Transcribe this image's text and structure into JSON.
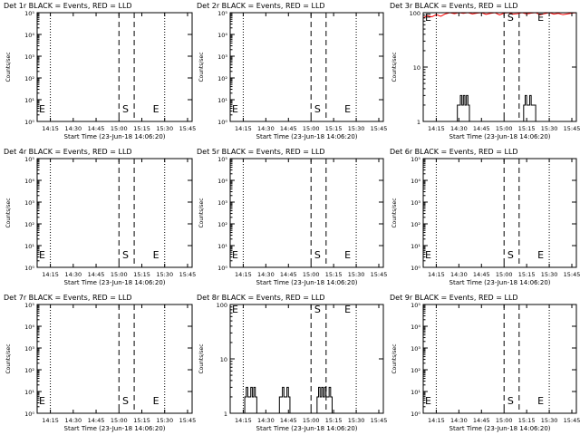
{
  "chart_data": [
    {
      "type": "line",
      "title": "Det 1r BLACK = Events, RED = LLD",
      "xlabel": "Start Time (23-Jun-18 14:06:20)",
      "ylabel": "Counts/sec",
      "scale": "log",
      "ylim": [
        1,
        100000
      ],
      "ytick_labels": [
        {
          "value": 1,
          "label": "10⁰"
        },
        {
          "value": 10,
          "label": "10¹"
        },
        {
          "value": 100,
          "label": "10²"
        },
        {
          "value": 1000,
          "label": "10³"
        },
        {
          "value": 10000,
          "label": "10⁴"
        },
        {
          "value": 100000,
          "label": "10⁵"
        }
      ],
      "xlim": [
        "14:06:20",
        "15:48:00"
      ],
      "xtick_labels": [
        "14:15",
        "14:30",
        "14:45",
        "15:00",
        "15:15",
        "15:30",
        "15:45"
      ],
      "dotted_lines": [
        "14:15",
        "15:30"
      ],
      "dashed_lines": [
        "15:00",
        "15:10"
      ],
      "markers": [
        {
          "label": "E",
          "x": "14:06:20"
        },
        {
          "label": "S",
          "x": "15:01"
        },
        {
          "label": "E",
          "x": "15:21"
        }
      ],
      "series": []
    },
    {
      "type": "line",
      "title": "Det 2r BLACK = Events, RED = LLD",
      "xlabel": "Start Time (23-Jun-18 14:06:20)",
      "ylabel": "Counts/sec",
      "scale": "log",
      "ylim": [
        1,
        100000
      ],
      "ytick_labels": [
        {
          "value": 1,
          "label": "10⁰"
        },
        {
          "value": 10,
          "label": "10¹"
        },
        {
          "value": 100,
          "label": "10²"
        },
        {
          "value": 1000,
          "label": "10³"
        },
        {
          "value": 10000,
          "label": "10⁴"
        },
        {
          "value": 100000,
          "label": "10⁵"
        }
      ],
      "xlim": [
        "14:06:20",
        "15:48:00"
      ],
      "xtick_labels": [
        "14:15",
        "14:30",
        "14:45",
        "15:00",
        "15:15",
        "15:30",
        "15:45"
      ],
      "dotted_lines": [
        "14:15",
        "15:30"
      ],
      "dashed_lines": [
        "15:00",
        "15:10"
      ],
      "markers": [
        {
          "label": "E",
          "x": "14:06:20"
        },
        {
          "label": "S",
          "x": "15:01"
        },
        {
          "label": "E",
          "x": "15:21"
        }
      ],
      "series": []
    },
    {
      "type": "line",
      "title": "Det 3r BLACK = Events, RED = LLD",
      "xlabel": "Start Time (23-Jun-18 14:06:20)",
      "ylabel": "Counts/sec",
      "scale": "log",
      "ylim": [
        1,
        100
      ],
      "ytick_labels": [
        {
          "value": 1,
          "label": "1"
        },
        {
          "value": 10,
          "label": "10"
        },
        {
          "value": 100,
          "label": "100"
        }
      ],
      "xlim": [
        "14:06:20",
        "15:48:00"
      ],
      "xtick_labels": [
        "14:15",
        "14:30",
        "14:45",
        "15:00",
        "15:15",
        "15:30",
        "15:45"
      ],
      "dotted_lines": [
        "14:15",
        "15:30"
      ],
      "dashed_lines": [
        "15:00",
        "15:10"
      ],
      "markers": [
        {
          "label": "E",
          "x": "14:06:20"
        },
        {
          "label": "S",
          "x": "15:01"
        },
        {
          "label": "E",
          "x": "15:21"
        }
      ],
      "series": [
        {
          "role": "events",
          "color": "#000000",
          "step": true,
          "x": [
            "14:28",
            "14:29",
            "14:30",
            "14:31",
            "14:32",
            "14:33",
            "14:34",
            "14:35",
            "14:36",
            "14:37",
            "15:12",
            "15:13",
            "15:14",
            "15:15",
            "15:16",
            "15:17",
            "15:18",
            "15:19",
            "15:20",
            "15:21"
          ],
          "values": [
            1,
            2,
            2,
            3,
            2,
            3,
            2,
            3,
            2,
            1,
            1,
            2,
            3,
            2,
            2,
            3,
            2,
            2,
            2,
            1
          ]
        },
        {
          "role": "lld",
          "color": "#ff0000",
          "x": [
            "14:06:20",
            "14:09",
            "14:12",
            "14:15",
            "14:18",
            "14:21",
            "14:24",
            "14:27",
            "14:30",
            "14:33",
            "14:36",
            "14:39",
            "14:42",
            "14:45",
            "14:48",
            "14:51",
            "14:54",
            "14:57",
            "15:00",
            "15:03",
            "15:06",
            "15:09",
            "15:12",
            "15:15",
            "15:18",
            "15:21",
            "15:24",
            "15:27",
            "15:30",
            "15:33",
            "15:36",
            "15:39",
            "15:42",
            "15:45",
            "15:48"
          ],
          "values": [
            80,
            88,
            84,
            92,
            86,
            95,
            100,
            96,
            100,
            97,
            100,
            95,
            98,
            100,
            93,
            97,
            100,
            91,
            98,
            100,
            94,
            96,
            100,
            95,
            98,
            100,
            92,
            96,
            100,
            94,
            97,
            92,
            95,
            98,
            100
          ]
        }
      ]
    },
    {
      "type": "line",
      "title": "Det 4r BLACK = Events, RED = LLD",
      "xlabel": "Start Time (23-Jun-18 14:06:20)",
      "ylabel": "Counts/sec",
      "scale": "log",
      "ylim": [
        1,
        100000
      ],
      "ytick_labels": [
        {
          "value": 1,
          "label": "10⁰"
        },
        {
          "value": 10,
          "label": "10¹"
        },
        {
          "value": 100,
          "label": "10²"
        },
        {
          "value": 1000,
          "label": "10³"
        },
        {
          "value": 10000,
          "label": "10⁴"
        },
        {
          "value": 100000,
          "label": "10⁵"
        }
      ],
      "xlim": [
        "14:06:20",
        "15:48:00"
      ],
      "xtick_labels": [
        "14:15",
        "14:30",
        "14:45",
        "15:00",
        "15:15",
        "15:30",
        "15:45"
      ],
      "dotted_lines": [
        "14:15",
        "15:30"
      ],
      "dashed_lines": [
        "15:00",
        "15:10"
      ],
      "markers": [
        {
          "label": "E",
          "x": "14:06:20"
        },
        {
          "label": "S",
          "x": "15:01"
        },
        {
          "label": "E",
          "x": "15:21"
        }
      ],
      "series": []
    },
    {
      "type": "line",
      "title": "Det 5r BLACK = Events, RED = LLD",
      "xlabel": "Start Time (23-Jun-18 14:06:20)",
      "ylabel": "Counts/sec",
      "scale": "log",
      "ylim": [
        1,
        100000
      ],
      "ytick_labels": [
        {
          "value": 1,
          "label": "10⁰"
        },
        {
          "value": 10,
          "label": "10¹"
        },
        {
          "value": 100,
          "label": "10²"
        },
        {
          "value": 1000,
          "label": "10³"
        },
        {
          "value": 10000,
          "label": "10⁴"
        },
        {
          "value": 100000,
          "label": "10⁵"
        }
      ],
      "xlim": [
        "14:06:20",
        "15:48:00"
      ],
      "xtick_labels": [
        "14:15",
        "14:30",
        "14:45",
        "15:00",
        "15:15",
        "15:30",
        "15:45"
      ],
      "dotted_lines": [
        "14:15",
        "15:30"
      ],
      "dashed_lines": [
        "15:00",
        "15:10"
      ],
      "markers": [
        {
          "label": "E",
          "x": "14:06:20"
        },
        {
          "label": "S",
          "x": "15:01"
        },
        {
          "label": "E",
          "x": "15:21"
        }
      ],
      "series": []
    },
    {
      "type": "line",
      "title": "Det 6r BLACK = Events, RED = LLD",
      "xlabel": "Start Time (23-Jun-18 14:06:20)",
      "ylabel": "Counts/sec",
      "scale": "log",
      "ylim": [
        1,
        100000
      ],
      "ytick_labels": [
        {
          "value": 1,
          "label": "10⁰"
        },
        {
          "value": 10,
          "label": "10¹"
        },
        {
          "value": 100,
          "label": "10²"
        },
        {
          "value": 1000,
          "label": "10³"
        },
        {
          "value": 10000,
          "label": "10⁴"
        },
        {
          "value": 100000,
          "label": "10⁵"
        }
      ],
      "xlim": [
        "14:06:20",
        "15:48:00"
      ],
      "xtick_labels": [
        "14:15",
        "14:30",
        "14:45",
        "15:00",
        "15:15",
        "15:30",
        "15:45"
      ],
      "dotted_lines": [
        "14:15",
        "15:30"
      ],
      "dashed_lines": [
        "15:00",
        "15:10"
      ],
      "markers": [
        {
          "label": "E",
          "x": "14:06:20"
        },
        {
          "label": "S",
          "x": "15:01"
        },
        {
          "label": "E",
          "x": "15:21"
        }
      ],
      "series": []
    },
    {
      "type": "line",
      "title": "Det 7r BLACK = Events, RED = LLD",
      "xlabel": "Start Time (23-Jun-18 14:06:20)",
      "ylabel": "Counts/sec",
      "scale": "log",
      "ylim": [
        1,
        100000
      ],
      "ytick_labels": [
        {
          "value": 1,
          "label": "10⁰"
        },
        {
          "value": 10,
          "label": "10¹"
        },
        {
          "value": 100,
          "label": "10²"
        },
        {
          "value": 1000,
          "label": "10³"
        },
        {
          "value": 10000,
          "label": "10⁴"
        },
        {
          "value": 100000,
          "label": "10⁵"
        }
      ],
      "xlim": [
        "14:06:20",
        "15:48:00"
      ],
      "xtick_labels": [
        "14:15",
        "14:30",
        "14:45",
        "15:00",
        "15:15",
        "15:30",
        "15:45"
      ],
      "dotted_lines": [
        "14:15",
        "15:30"
      ],
      "dashed_lines": [
        "15:00",
        "15:10"
      ],
      "markers": [
        {
          "label": "E",
          "x": "14:06:20"
        },
        {
          "label": "S",
          "x": "15:01"
        },
        {
          "label": "E",
          "x": "15:21"
        }
      ],
      "series": []
    },
    {
      "type": "line",
      "title": "Det 8r BLACK = Events, RED = LLD",
      "xlabel": "Start Time (23-Jun-18 14:06:20)",
      "ylabel": "Counts/sec",
      "scale": "log",
      "ylim": [
        1,
        100
      ],
      "ytick_labels": [
        {
          "value": 1,
          "label": "1"
        },
        {
          "value": 10,
          "label": "10"
        },
        {
          "value": 100,
          "label": "100"
        }
      ],
      "xlim": [
        "14:06:20",
        "15:48:00"
      ],
      "xtick_labels": [
        "14:15",
        "14:30",
        "14:45",
        "15:00",
        "15:15",
        "15:30",
        "15:45"
      ],
      "dotted_lines": [
        "14:15",
        "15:30"
      ],
      "dashed_lines": [
        "15:00",
        "15:10"
      ],
      "markers": [
        {
          "label": "E",
          "x": "14:06:20"
        },
        {
          "label": "S",
          "x": "15:01"
        },
        {
          "label": "E",
          "x": "15:21"
        }
      ],
      "series": [
        {
          "role": "events",
          "color": "#000000",
          "step": true,
          "x": [
            "14:15",
            "14:16",
            "14:17",
            "14:18",
            "14:19",
            "14:20",
            "14:21",
            "14:22",
            "14:23",
            "14:24",
            "14:38",
            "14:39",
            "14:40",
            "14:41",
            "14:42",
            "14:43",
            "14:44",
            "14:45",
            "14:46",
            "15:03",
            "15:04",
            "15:05",
            "15:06",
            "15:07",
            "15:08",
            "15:09",
            "15:10",
            "15:11",
            "15:12",
            "15:13",
            "15:14"
          ],
          "values": [
            1,
            2,
            3,
            2,
            2,
            3,
            2,
            3,
            2,
            1,
            1,
            2,
            2,
            3,
            2,
            2,
            3,
            2,
            1,
            1,
            2,
            3,
            2,
            3,
            2,
            3,
            2,
            2,
            3,
            2,
            1
          ]
        }
      ]
    },
    {
      "type": "line",
      "title": "Det 9r BLACK = Events, RED = LLD",
      "xlabel": "Start Time (23-Jun-18 14:06:20)",
      "ylabel": "Counts/sec",
      "scale": "log",
      "ylim": [
        1,
        100000
      ],
      "ytick_labels": [
        {
          "value": 1,
          "label": "10⁰"
        },
        {
          "value": 10,
          "label": "10¹"
        },
        {
          "value": 100,
          "label": "10²"
        },
        {
          "value": 1000,
          "label": "10³"
        },
        {
          "value": 10000,
          "label": "10⁴"
        },
        {
          "value": 100000,
          "label": "10⁵"
        }
      ],
      "xlim": [
        "14:06:20",
        "15:48:00"
      ],
      "xtick_labels": [
        "14:15",
        "14:30",
        "14:45",
        "15:00",
        "15:15",
        "15:30",
        "15:45"
      ],
      "dotted_lines": [
        "14:15",
        "15:30"
      ],
      "dashed_lines": [
        "15:00",
        "15:10"
      ],
      "markers": [
        {
          "label": "E",
          "x": "14:06:20"
        },
        {
          "label": "S",
          "x": "15:01"
        },
        {
          "label": "E",
          "x": "15:21"
        }
      ],
      "series": []
    }
  ]
}
